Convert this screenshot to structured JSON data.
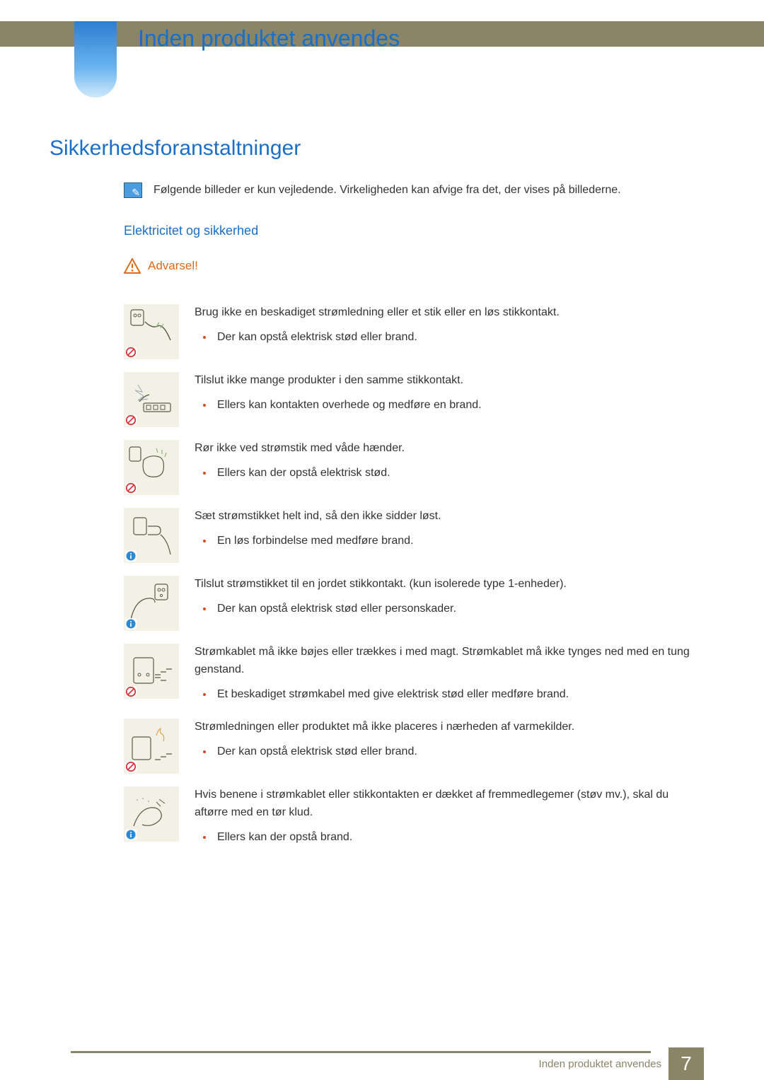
{
  "colors": {
    "header_bar": "#8a8567",
    "blue_tab_top": "#2d7dd2",
    "blue_tab_bottom": "#cfe9fb",
    "heading_blue": "#1a6fc9",
    "warning_orange": "#e06a1b",
    "bullet_red": "#d24a2a",
    "thumb_bg": "#f3f1e6",
    "body_text": "#333333",
    "prohibit_red": "#d9363e",
    "info_blue": "#2a8ad4"
  },
  "typography": {
    "body_fontsize_pt": 12,
    "chapter_title_fontsize_pt": 24,
    "section_title_fontsize_pt": 22,
    "subsection_title_fontsize_pt": 14,
    "warning_fontsize_pt": 13,
    "page_num_fontsize_pt": 21
  },
  "chapter_title": "Inden produktet anvendes",
  "section_title": "Sikkerhedsforanstaltninger",
  "note_text": "Følgende billeder er kun vejledende. Virkeligheden kan afvige fra det, der vises på billederne.",
  "subsection_title": "Elektricitet og sikkerhed",
  "warning_label": "Advarsel!",
  "items": [
    {
      "badge": "prohibit",
      "lede": "Brug ikke en beskadiget strømledning eller et stik eller en løs stikkontakt.",
      "bullets": [
        "Der kan opstå elektrisk stød eller brand."
      ]
    },
    {
      "badge": "prohibit",
      "lede": "Tilslut ikke mange produkter i den samme stikkontakt.",
      "bullets": [
        "Ellers kan kontakten overhede og medføre en brand."
      ]
    },
    {
      "badge": "prohibit",
      "lede": "Rør ikke ved strømstik med våde hænder.",
      "bullets": [
        "Ellers kan der opstå elektrisk stød."
      ]
    },
    {
      "badge": "ok",
      "lede": "Sæt strømstikket helt ind, så den ikke sidder løst.",
      "bullets": [
        "En løs forbindelse med medføre brand."
      ]
    },
    {
      "badge": "ok",
      "lede": "Tilslut strømstikket til en jordet stikkontakt. (kun isolerede type 1-enheder).",
      "bullets": [
        "Der kan opstå elektrisk stød eller personskader."
      ]
    },
    {
      "badge": "prohibit",
      "lede": "Strømkablet må ikke bøjes eller trækkes i med magt. Strømkablet må ikke tynges ned med en tung genstand.",
      "bullets": [
        "Et beskadiget strømkabel med give elektrisk stød eller medføre brand."
      ]
    },
    {
      "badge": "prohibit",
      "lede": "Strømledningen eller produktet må ikke placeres i nærheden af varmekilder.",
      "bullets": [
        "Der kan opstå elektrisk stød eller brand."
      ]
    },
    {
      "badge": "ok",
      "lede": "Hvis benene i strømkablet eller stikkontakten er dækket af fremmedlegemer (støv mv.), skal du aftørre med en tør klud.",
      "bullets": [
        "Ellers kan der opstå brand."
      ]
    }
  ],
  "footer_label": "Inden produktet anvendes",
  "page_number": "7"
}
